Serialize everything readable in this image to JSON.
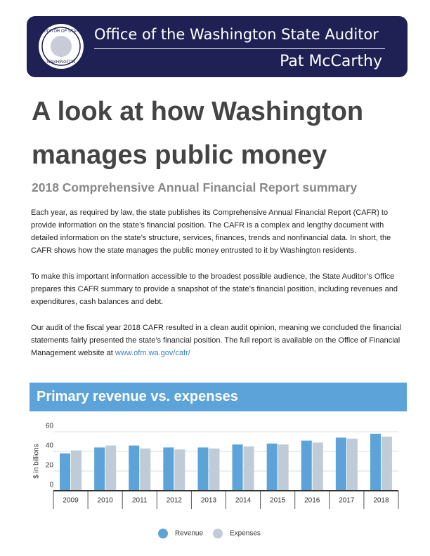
{
  "header": {
    "seal_top": "AUDITOR OF STATE",
    "seal_bottom": "WASHINGTON",
    "office": "Office of the Washington State Auditor",
    "name": "Pat McCarthy"
  },
  "title": "A look at how Washington manages public money",
  "subtitle": "2018 Comprehensive Annual Financial Report summary",
  "paragraphs": [
    "Each year, as required by law, the state publishes its Comprehensive Annual Financial Report (CAFR) to provide information on the state’s financial position. The CAFR is a complex and lengthy document with detailed information on the state’s structure, services, finances, trends and nonfinancial data. In short, the CAFR shows how the state manages the public money entrusted to it by Washington residents.",
    "To make this important information accessible to the broadest possible audience, the State Auditor’s Office prepares this CAFR summary to provide a snapshot of the state’s financial position, including revenues and expenditures, cash balances and debt.",
    "Our audit of the fiscal year 2018 CAFR resulted in a clean audit opinion, meaning we concluded the financial statements fairly presented the state’s financial position. The full report is available on the Office of Financial Management website at"
  ],
  "link": "www.ofm.wa.gov/cafr/",
  "chart_data": {
    "type": "bar",
    "title": "Primary revenue vs. expenses",
    "y_label": "$ in billions",
    "categories": [
      "2009",
      "2010",
      "2011",
      "2012",
      "2013",
      "2014",
      "2015",
      "2016",
      "2017",
      "2018"
    ],
    "series": [
      {
        "name": "Revenue",
        "color": "#5ba3d9",
        "values": [
          38,
          44,
          46,
          44,
          44,
          47,
          48,
          51,
          54,
          58
        ]
      },
      {
        "name": "Expenses",
        "color": "#bfcbd6",
        "values": [
          41,
          46,
          43,
          42,
          43,
          45,
          47,
          49,
          53,
          55
        ]
      }
    ],
    "ylim": [
      0,
      60
    ],
    "yticks": [
      0,
      20,
      40,
      60
    ],
    "grid": true,
    "legend": "bottom"
  }
}
